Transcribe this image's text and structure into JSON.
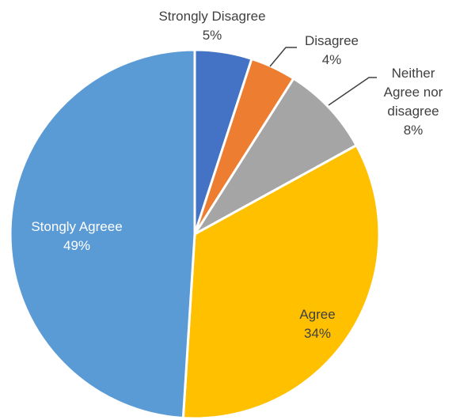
{
  "chart_data": {
    "type": "pie",
    "title": "",
    "slices": [
      {
        "label": "Strongly Disagree",
        "lines": [
          "Strongly Disagree"
        ],
        "value_label": "5%",
        "value": 5,
        "color": "#4472C4"
      },
      {
        "label": "Disagree",
        "lines": [
          "Disagree"
        ],
        "value_label": "4%",
        "value": 4,
        "color": "#ED7D31"
      },
      {
        "label": "Neither Agree nor disagree",
        "lines": [
          "Neither",
          "Agree nor",
          "disagree"
        ],
        "value_label": "8%",
        "value": 8,
        "color": "#A5A5A5"
      },
      {
        "label": "Agree",
        "lines": [
          "Agree"
        ],
        "value_label": "34%",
        "value": 34,
        "color": "#FFC000"
      },
      {
        "label": "Stongly Agreee",
        "lines": [
          "Stongly Agreee"
        ],
        "value_label": "49%",
        "value": 49,
        "color": "#5B9BD5"
      }
    ],
    "start_angle_deg": 0,
    "direction": "clockwise",
    "legend": "none",
    "data_labels": "category-and-percent"
  }
}
